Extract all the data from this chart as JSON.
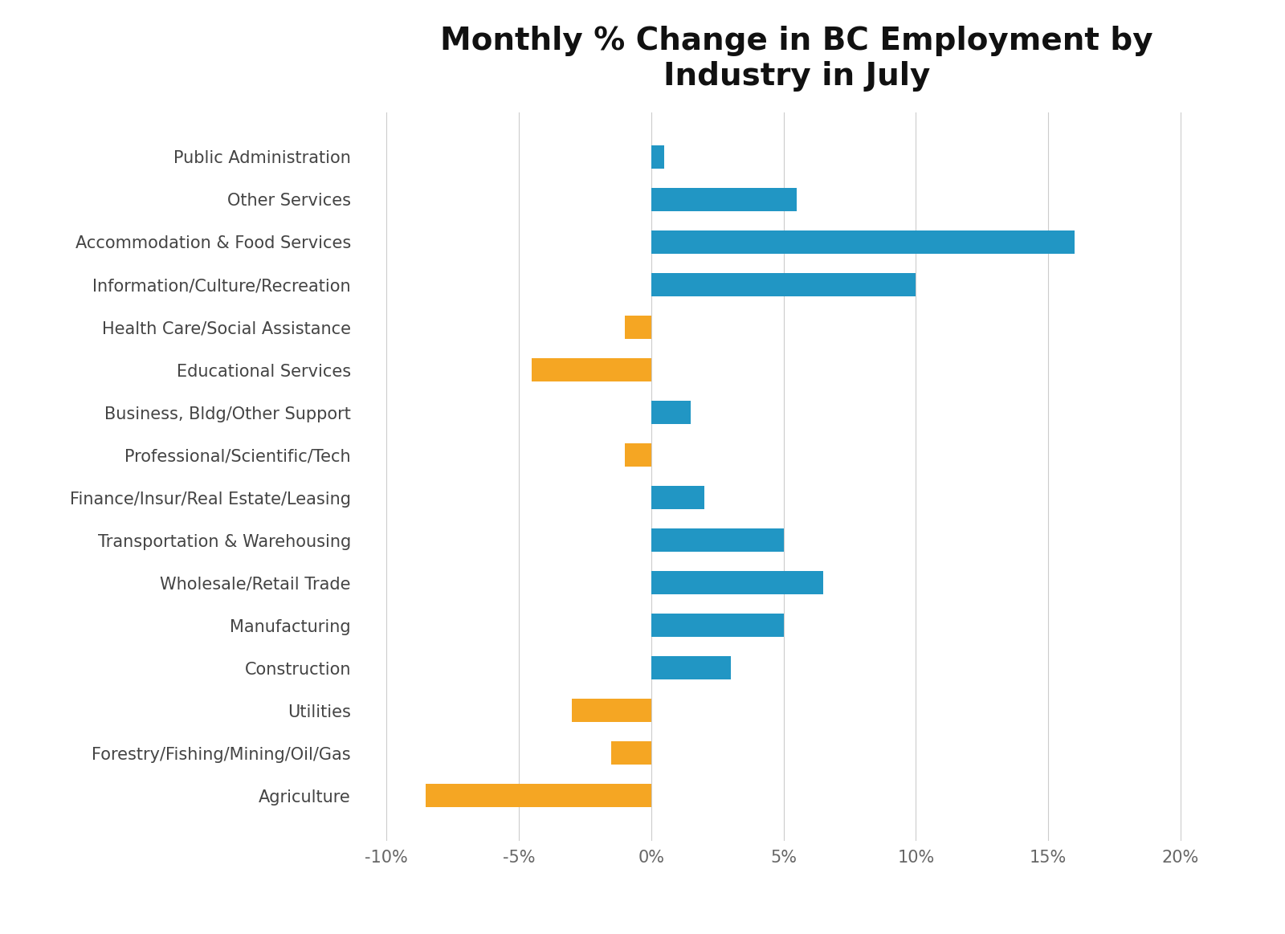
{
  "title": "Monthly % Change in BC Employment by\nIndustry in July",
  "categories": [
    "Public Administration",
    "Other Services",
    "Accommodation & Food Services",
    "Information/Culture/Recreation",
    "Health Care/Social Assistance",
    "Educational Services",
    "Business, Bldg/Other Support",
    "Professional/Scientific/Tech",
    "Finance/Insur/Real Estate/Leasing",
    "Transportation & Warehousing",
    "Wholesale/Retail Trade",
    "Manufacturing",
    "Construction",
    "Utilities",
    "Forestry/Fishing/Mining/Oil/Gas",
    "Agriculture"
  ],
  "values": [
    0.5,
    5.5,
    16.0,
    10.0,
    -1.0,
    -4.5,
    1.5,
    -1.0,
    2.0,
    5.0,
    6.5,
    5.0,
    3.0,
    -3.0,
    -1.5,
    -8.5
  ],
  "bar_color_positive": "#2196C4",
  "bar_color_negative": "#F5A623",
  "xlim": [
    -11,
    22
  ],
  "xticks": [
    -10,
    -5,
    0,
    5,
    10,
    15,
    20
  ],
  "xtick_labels": [
    "-10%",
    "-5%",
    "0%",
    "5%",
    "10%",
    "15%",
    "20%"
  ],
  "title_fontsize": 28,
  "label_fontsize": 15,
  "tick_fontsize": 15,
  "background_color": "#ffffff",
  "grid_color": "#cccccc",
  "bar_height": 0.55
}
